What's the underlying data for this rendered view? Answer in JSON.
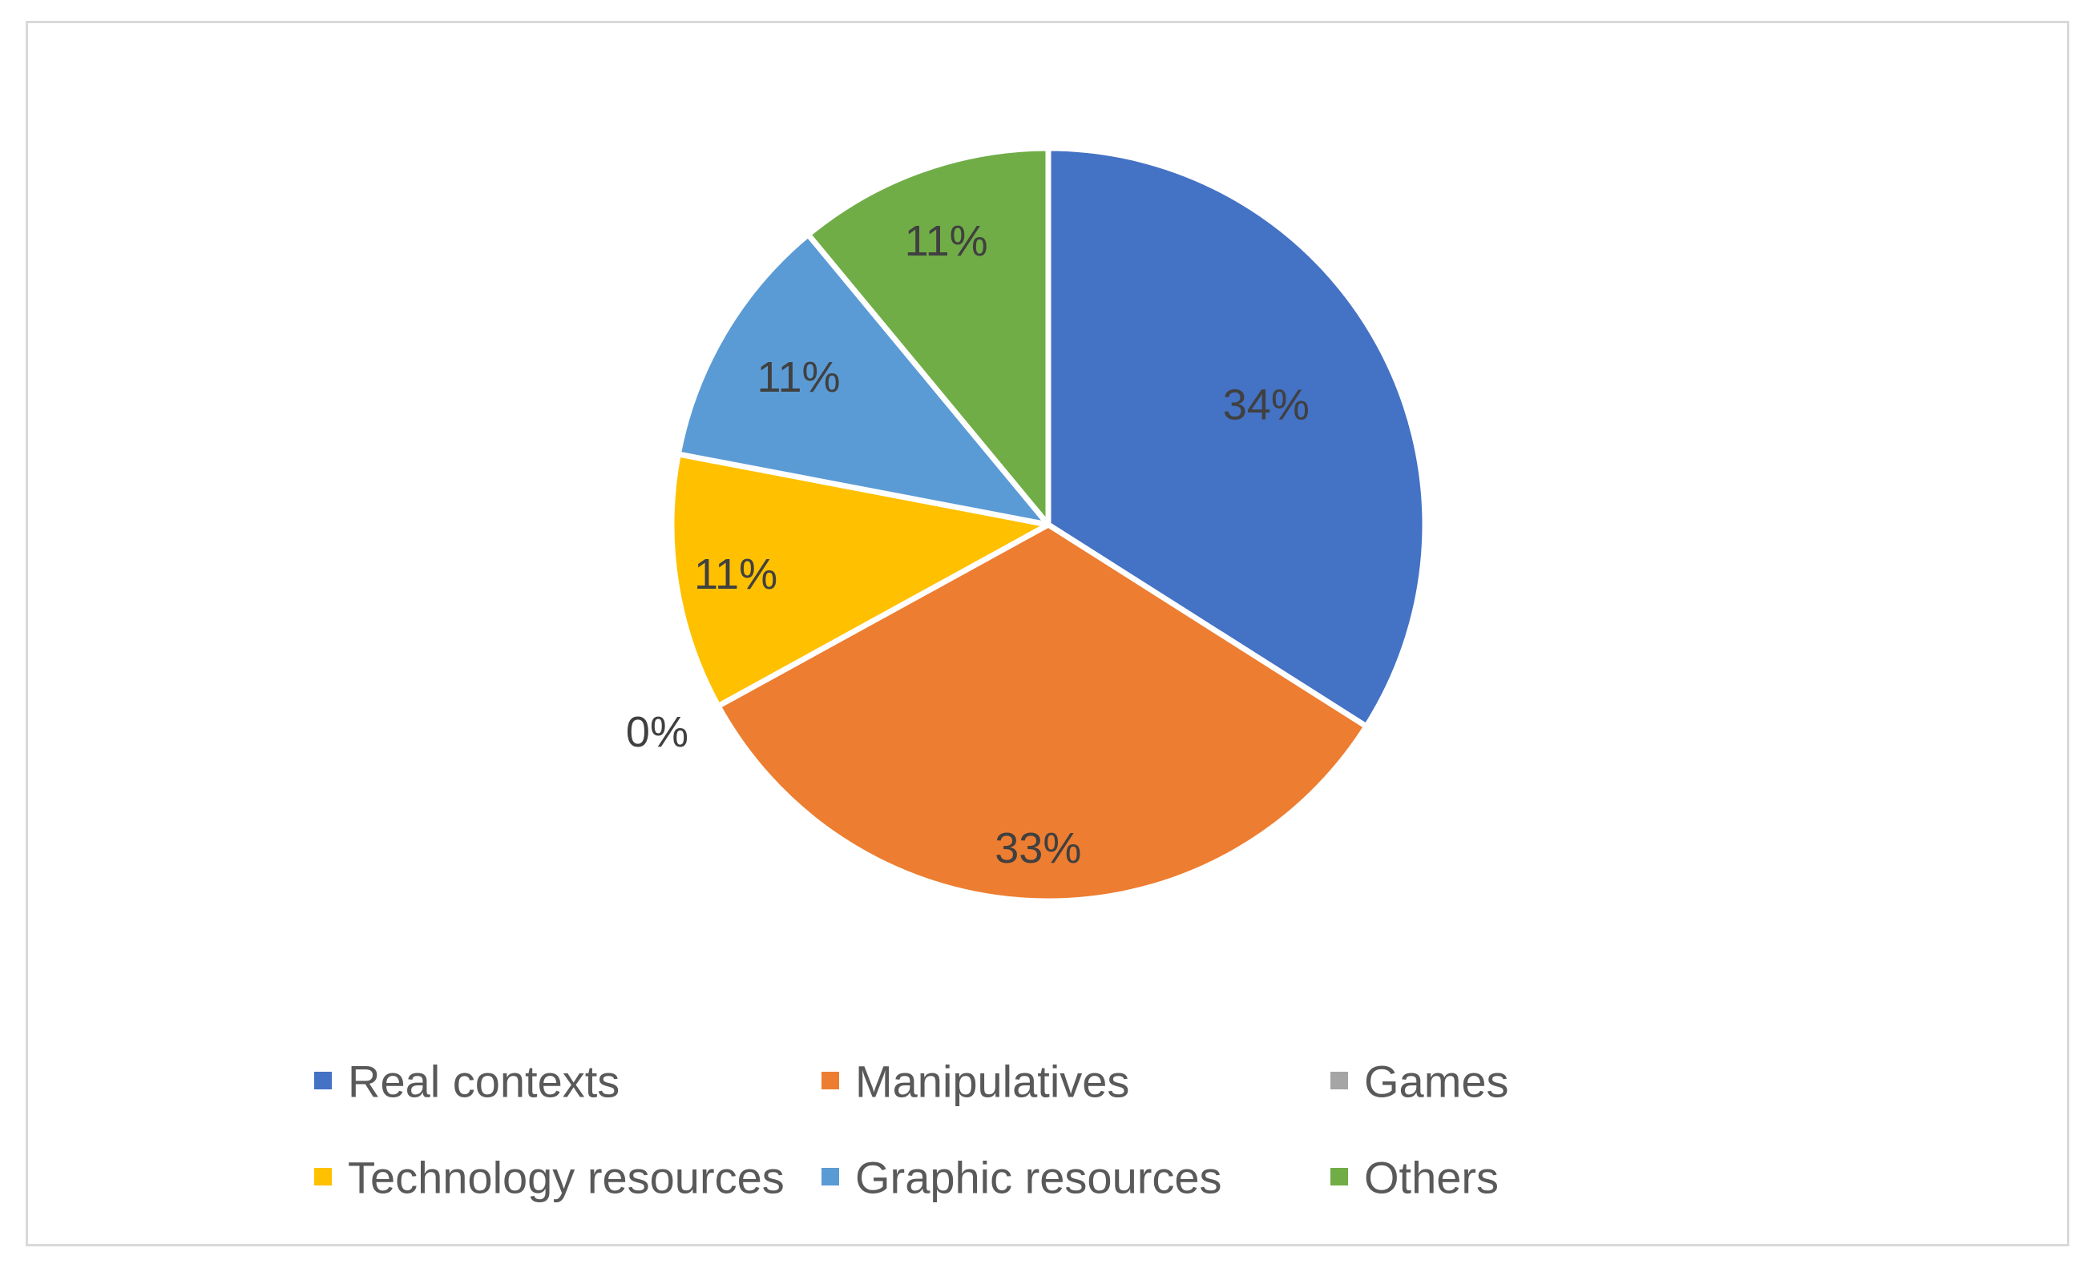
{
  "chart_data": {
    "type": "pie",
    "title": "",
    "legend_position": "bottom",
    "slices": [
      {
        "name": "Real contexts",
        "value": 34,
        "label": "34%",
        "color": "#4472c4"
      },
      {
        "name": "Manipulatives",
        "value": 33,
        "label": "33%",
        "color": "#ed7d31"
      },
      {
        "name": "Games",
        "value": 0,
        "label": "0%",
        "color": "#a5a5a5"
      },
      {
        "name": "Technology resources",
        "value": 11,
        "label": "11%",
        "color": "#ffc000"
      },
      {
        "name": "Graphic resources",
        "value": 11,
        "label": "11%",
        "color": "#5b9bd5"
      },
      {
        "name": "Others",
        "value": 11,
        "label": "11%",
        "color": "#70ad47"
      }
    ]
  }
}
